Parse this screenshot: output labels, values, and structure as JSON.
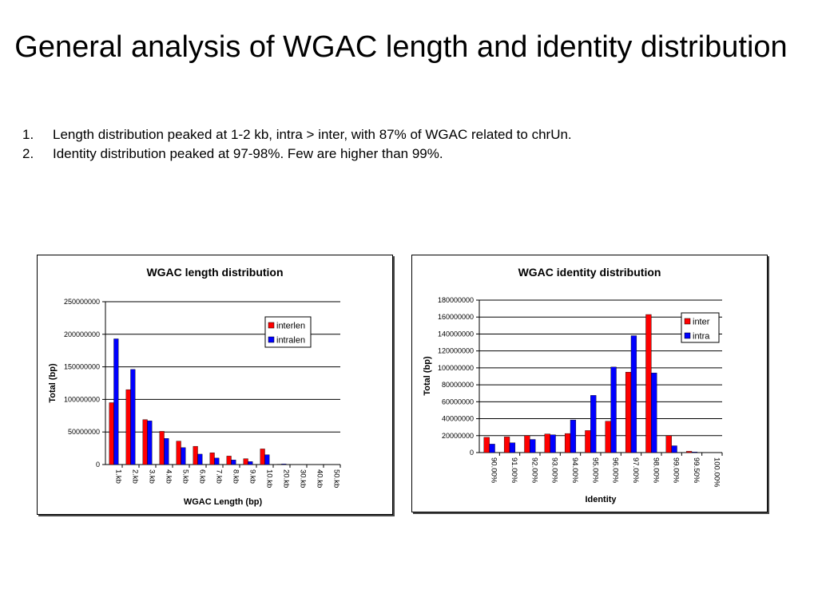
{
  "title": "General analysis of WGAC length and identity distribution",
  "bullets": [
    {
      "num": "1.",
      "text": "Length distribution peaked at 1-2 kb, intra > inter, with 87% of WGAC related to chrUn."
    },
    {
      "num": "2.",
      "text": "Identity distribution peaked at 97-98%. Few are higher than 99%."
    }
  ],
  "colors": {
    "series1": "#ff0000",
    "series2": "#0000ff",
    "grid": "#000000"
  },
  "chart_data": [
    {
      "type": "bar",
      "title": "WGAC length distribution",
      "xlabel": "WGAC Length (bp)",
      "ylabel": "Total (bp)",
      "ylim": [
        0,
        250000000
      ],
      "yticks": [
        "0",
        "50000000",
        "100000000",
        "150000000",
        "200000000",
        "250000000"
      ],
      "categories": [
        "1.kb",
        "2.kb",
        "3.kb",
        "4.kb",
        "5.kb",
        "6.kb",
        "7.kb",
        "8.kb",
        "9.kb",
        "10.kb",
        "20.kb",
        "30.kb",
        "40.kb",
        "50.kb"
      ],
      "series": [
        {
          "name": "interlen",
          "values": [
            95000000,
            115000000,
            69000000,
            51000000,
            36000000,
            28000000,
            18000000,
            13000000,
            9000000,
            24000000,
            500000,
            0,
            0,
            0
          ]
        },
        {
          "name": "intralen",
          "values": [
            193000000,
            146000000,
            67000000,
            40000000,
            26000000,
            16000000,
            10000000,
            7000000,
            4500000,
            15000000,
            1000000,
            0,
            0,
            0
          ]
        }
      ],
      "grid": true,
      "legend_position": "top-right"
    },
    {
      "type": "bar",
      "title": "WGAC identity distribution",
      "xlabel": "Identity",
      "ylabel": "Total (bp)",
      "ylim": [
        0,
        180000000
      ],
      "yticks": [
        "0",
        "20000000",
        "40000000",
        "60000000",
        "80000000",
        "100000000",
        "120000000",
        "140000000",
        "160000000",
        "180000000"
      ],
      "categories": [
        "90.00%",
        "91.00%",
        "92.00%",
        "93.00%",
        "94.00%",
        "95.00%",
        "96.00%",
        "97.00%",
        "98.00%",
        "99.00%",
        "99.50%",
        "100.00%"
      ],
      "series": [
        {
          "name": "inter",
          "values": [
            18000000,
            18500000,
            20000000,
            22000000,
            22500000,
            26000000,
            37000000,
            95000000,
            163000000,
            20000000,
            1500000,
            0
          ]
        },
        {
          "name": "intra",
          "values": [
            10000000,
            11500000,
            15500000,
            21000000,
            38500000,
            67500000,
            101000000,
            138000000,
            94000000,
            8000000,
            700000,
            0
          ]
        }
      ],
      "grid": true,
      "legend_position": "top-right"
    }
  ]
}
